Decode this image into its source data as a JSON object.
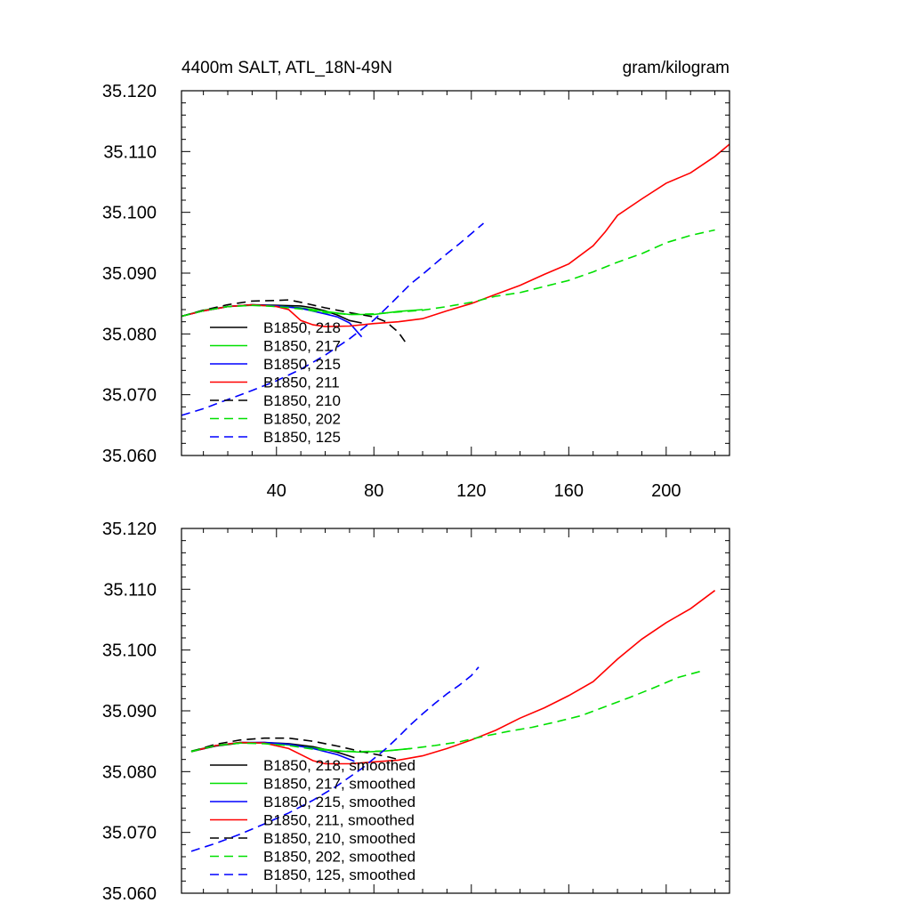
{
  "chart_data": [
    {
      "type": "line",
      "title_left": "4400m SALT, ATL_18N-49N",
      "title_right": "gram/kilogram",
      "xlim": [
        1,
        226
      ],
      "ylim": [
        35.06,
        35.12
      ],
      "x_ticks": [
        40,
        80,
        120,
        160,
        200
      ],
      "y_ticks": [
        "35.060",
        "35.070",
        "35.080",
        "35.090",
        "35.100",
        "35.110",
        "35.120"
      ],
      "series": [
        {
          "name": "B1850, 218",
          "color": "#000000",
          "dash": "solid",
          "x": [
            1,
            10,
            20,
            30,
            40,
            50,
            55,
            60,
            65,
            70,
            75
          ],
          "y": [
            35.0829,
            35.0838,
            35.0845,
            35.0848,
            35.0847,
            35.0846,
            35.0843,
            35.0838,
            35.0831,
            35.0822,
            35.0818
          ]
        },
        {
          "name": "B1850, 217",
          "color": "#00e000",
          "dash": "solid",
          "x": [
            1,
            10,
            20,
            30,
            40,
            50,
            60,
            70,
            80,
            90,
            100
          ],
          "y": [
            35.0829,
            35.0839,
            35.0845,
            35.0847,
            35.0846,
            35.0843,
            35.0837,
            35.0832,
            35.0832,
            35.0837,
            35.084
          ]
        },
        {
          "name": "B1850, 215",
          "color": "#0000ff",
          "dash": "solid",
          "x": [
            1,
            10,
            20,
            30,
            40,
            50,
            60,
            65,
            70,
            75
          ],
          "y": [
            35.0829,
            35.0838,
            35.0845,
            35.0848,
            35.0846,
            35.0842,
            35.0833,
            35.0828,
            35.0818,
            35.0795
          ]
        },
        {
          "name": "B1850, 211",
          "color": "#ff0000",
          "dash": "solid",
          "x": [
            1,
            10,
            20,
            30,
            40,
            45,
            50,
            55,
            60,
            70,
            80,
            90,
            100,
            110,
            120,
            130,
            140,
            150,
            160,
            170,
            175,
            180,
            190,
            200,
            210,
            220,
            226
          ],
          "y": [
            35.0829,
            35.0838,
            35.0845,
            35.0848,
            35.0845,
            35.084,
            35.0822,
            35.0815,
            35.0812,
            35.0813,
            35.0817,
            35.082,
            35.0825,
            35.0838,
            35.085,
            35.0865,
            35.088,
            35.0898,
            35.0915,
            35.0945,
            35.0968,
            35.0995,
            35.1022,
            35.1048,
            35.1065,
            35.1092,
            35.1112
          ]
        },
        {
          "name": "B1850, 210",
          "color": "#000000",
          "dash": "dashed",
          "x": [
            1,
            10,
            20,
            30,
            40,
            45,
            50,
            60,
            70,
            80,
            85,
            90,
            93
          ],
          "y": [
            35.0829,
            35.0839,
            35.0848,
            35.0854,
            35.0855,
            35.0856,
            35.0852,
            35.0843,
            35.0835,
            35.0828,
            35.082,
            35.0803,
            35.0786
          ]
        },
        {
          "name": "B1850, 202",
          "color": "#00e000",
          "dash": "dashed",
          "x": [
            1,
            10,
            20,
            30,
            40,
            50,
            60,
            70,
            80,
            90,
            100,
            110,
            120,
            130,
            140,
            150,
            160,
            170,
            180,
            190,
            200,
            210,
            220
          ],
          "y": [
            35.0829,
            35.0838,
            35.0845,
            35.0847,
            35.0845,
            35.0841,
            35.0835,
            35.0832,
            35.0833,
            35.0836,
            35.0839,
            35.0845,
            35.0852,
            35.0862,
            35.0868,
            35.0878,
            35.0888,
            35.0902,
            35.0918,
            35.0932,
            35.095,
            35.0962,
            35.0971
          ]
        },
        {
          "name": "B1850, 125",
          "color": "#0000ff",
          "dash": "dashed",
          "x": [
            1,
            10,
            20,
            30,
            40,
            50,
            60,
            70,
            80,
            85,
            90,
            95,
            100,
            105,
            110,
            115,
            120,
            125
          ],
          "y": [
            35.0666,
            35.0677,
            35.0692,
            35.0707,
            35.0723,
            35.0742,
            35.0765,
            35.0792,
            35.0823,
            35.0842,
            35.0862,
            35.0882,
            35.0898,
            35.0915,
            35.0932,
            35.0948,
            35.0965,
            35.0982
          ]
        }
      ]
    },
    {
      "type": "line",
      "xlim": [
        1,
        226
      ],
      "ylim": [
        35.06,
        35.12
      ],
      "y_ticks": [
        "35.060",
        "35.070",
        "35.080",
        "35.090",
        "35.100",
        "35.110",
        "35.120"
      ],
      "series": [
        {
          "name": "B1850, 218, smoothed",
          "color": "#000000",
          "dash": "solid",
          "x": [
            5,
            15,
            25,
            35,
            45,
            55,
            65,
            72
          ],
          "y": [
            35.0833,
            35.0842,
            35.0847,
            35.0848,
            35.0846,
            35.0841,
            35.0832,
            35.0823
          ]
        },
        {
          "name": "B1850, 217, smoothed",
          "color": "#00e000",
          "dash": "solid",
          "x": [
            5,
            15,
            25,
            35,
            45,
            55,
            65,
            75,
            85,
            95
          ],
          "y": [
            35.0834,
            35.0843,
            35.0847,
            35.0847,
            35.0844,
            35.0839,
            35.0834,
            35.0832,
            35.0834,
            35.0838
          ]
        },
        {
          "name": "B1850, 215, smoothed",
          "color": "#0000ff",
          "dash": "solid",
          "x": [
            5,
            15,
            25,
            35,
            45,
            55,
            65,
            72
          ],
          "y": [
            35.0833,
            35.0843,
            35.0848,
            35.0848,
            35.0845,
            35.0838,
            35.0828,
            35.0817
          ]
        },
        {
          "name": "B1850, 211, smoothed",
          "color": "#ff0000",
          "dash": "solid",
          "x": [
            5,
            15,
            25,
            35,
            45,
            50,
            55,
            60,
            70,
            80,
            90,
            100,
            110,
            120,
            130,
            140,
            150,
            160,
            170,
            180,
            190,
            200,
            210,
            220
          ],
          "y": [
            35.0833,
            35.0843,
            35.0848,
            35.0847,
            35.0838,
            35.0828,
            35.0818,
            35.0813,
            35.0813,
            35.0816,
            35.0819,
            35.0826,
            35.0838,
            35.0852,
            35.0868,
            35.0888,
            35.0905,
            35.0925,
            35.0948,
            35.0985,
            35.1018,
            35.1045,
            35.1068,
            35.1098
          ]
        },
        {
          "name": "B1850, 210, smoothed",
          "color": "#000000",
          "dash": "dashed",
          "x": [
            5,
            15,
            25,
            35,
            45,
            55,
            65,
            75,
            85,
            90
          ],
          "y": [
            35.0833,
            35.0845,
            35.0852,
            35.0855,
            35.0855,
            35.085,
            35.0842,
            35.0833,
            35.0825,
            35.082
          ]
        },
        {
          "name": "B1850, 202, smoothed",
          "color": "#00e000",
          "dash": "dashed",
          "x": [
            5,
            15,
            25,
            35,
            45,
            55,
            65,
            75,
            85,
            95,
            105,
            115,
            125,
            135,
            145,
            155,
            165,
            175,
            185,
            195,
            205,
            215
          ],
          "y": [
            35.0833,
            35.0843,
            35.0847,
            35.0846,
            35.0843,
            35.0837,
            35.0834,
            35.0833,
            35.0834,
            35.0838,
            35.0843,
            35.0849,
            35.0858,
            35.0866,
            35.0873,
            35.0882,
            35.0892,
            35.0907,
            35.0922,
            35.0938,
            35.0955,
            35.0966
          ]
        },
        {
          "name": "B1850, 125, smoothed",
          "color": "#0000ff",
          "dash": "dashed",
          "x": [
            5,
            15,
            25,
            35,
            45,
            55,
            65,
            75,
            85,
            90,
            95,
            100,
            105,
            110,
            115,
            120,
            123
          ],
          "y": [
            35.0669,
            35.0682,
            35.0697,
            35.0714,
            35.0732,
            35.0753,
            35.0777,
            35.0805,
            35.0838,
            35.0857,
            35.0877,
            35.0895,
            35.0912,
            35.0928,
            35.0942,
            35.0958,
            35.0972
          ]
        }
      ]
    }
  ]
}
